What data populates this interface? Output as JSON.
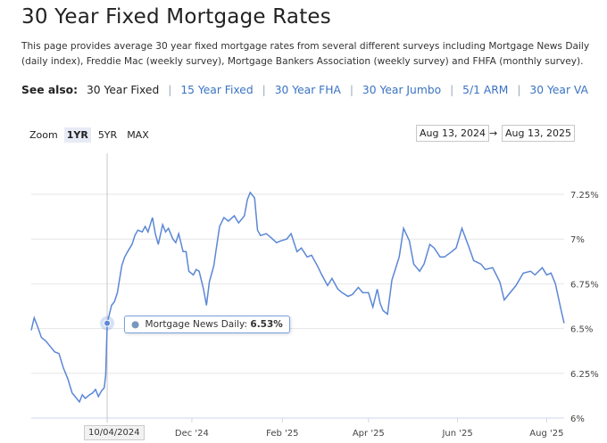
{
  "page": {
    "title": "30 Year Fixed Mortgage Rates",
    "description": "This page provides average 30 year fixed mortgage rates from several different surveys including Mortgage News Daily (daily index), Freddie Mac (weekly survey), Mortgage Bankers Association (weekly survey) and FHFA (monthly survey)."
  },
  "see_also": {
    "label": "See also:",
    "current": "30 Year Fixed",
    "links": [
      "15 Year Fixed",
      "30 Year FHA",
      "30 Year Jumbo",
      "5/1 ARM",
      "30 Year VA"
    ]
  },
  "controls": {
    "zoom_label": "Zoom",
    "zoom_options": [
      "1YR",
      "5YR",
      "MAX"
    ],
    "zoom_selected": "1YR",
    "range_from": "Aug 13, 2024",
    "range_to": "Aug 13, 2025",
    "range_separator": "→"
  },
  "tooltip": {
    "series": "Mortgage News Daily:",
    "value": "6.53%",
    "date": "10/04/2024"
  },
  "colors": {
    "line": "#5b87d6",
    "link": "#3a73c4",
    "grid": "#e6e6e6"
  },
  "chart_data": {
    "type": "line",
    "series": [
      {
        "name": "Mortgage News Daily",
        "x": [
          "2024-08-13",
          "2024-08-15",
          "2024-08-17",
          "2024-08-20",
          "2024-08-23",
          "2024-08-26",
          "2024-08-29",
          "2024-09-01",
          "2024-09-04",
          "2024-09-07",
          "2024-09-10",
          "2024-09-12",
          "2024-09-15",
          "2024-09-17",
          "2024-09-19",
          "2024-09-22",
          "2024-09-24",
          "2024-09-26",
          "2024-09-28",
          "2024-09-30",
          "2024-10-02",
          "2024-10-03",
          "2024-10-04",
          "2024-10-07",
          "2024-10-09",
          "2024-10-11",
          "2024-10-14",
          "2024-10-16",
          "2024-10-18",
          "2024-10-21",
          "2024-10-23",
          "2024-10-25",
          "2024-10-28",
          "2024-10-30",
          "2024-11-01",
          "2024-11-04",
          "2024-11-06",
          "2024-11-08",
          "2024-11-11",
          "2024-11-13",
          "2024-11-15",
          "2024-11-18",
          "2024-11-20",
          "2024-11-22",
          "2024-11-25",
          "2024-11-27",
          "2024-11-29",
          "2024-12-02",
          "2024-12-04",
          "2024-12-06",
          "2024-12-09",
          "2024-12-11",
          "2024-12-13",
          "2024-12-16",
          "2024-12-18",
          "2024-12-20",
          "2024-12-23",
          "2024-12-26",
          "2024-12-30",
          "2025-01-02",
          "2025-01-06",
          "2025-01-08",
          "2025-01-10",
          "2025-01-13",
          "2025-01-15",
          "2025-01-17",
          "2025-01-21",
          "2025-01-24",
          "2025-01-28",
          "2025-01-31",
          "2025-02-04",
          "2025-02-07",
          "2025-02-11",
          "2025-02-14",
          "2025-02-18",
          "2025-02-21",
          "2025-02-25",
          "2025-02-28",
          "2025-03-04",
          "2025-03-07",
          "2025-03-11",
          "2025-03-14",
          "2025-03-18",
          "2025-03-21",
          "2025-03-25",
          "2025-03-28",
          "2025-04-01",
          "2025-04-04",
          "2025-04-07",
          "2025-04-09",
          "2025-04-11",
          "2025-04-14",
          "2025-04-17",
          "2025-04-22",
          "2025-04-25",
          "2025-04-29",
          "2025-05-02",
          "2025-05-06",
          "2025-05-09",
          "2025-05-13",
          "2025-05-16",
          "2025-05-20",
          "2025-05-23",
          "2025-05-28",
          "2025-05-31",
          "2025-06-04",
          "2025-06-09",
          "2025-06-12",
          "2025-06-17",
          "2025-06-20",
          "2025-06-25",
          "2025-06-30",
          "2025-07-03",
          "2025-07-08",
          "2025-07-11",
          "2025-07-16",
          "2025-07-21",
          "2025-07-24",
          "2025-07-29",
          "2025-08-01",
          "2025-08-04",
          "2025-08-07",
          "2025-08-11",
          "2025-08-13"
        ],
        "values": [
          6.49,
          6.56,
          6.52,
          6.45,
          6.43,
          6.4,
          6.37,
          6.36,
          6.28,
          6.22,
          6.14,
          6.12,
          6.09,
          6.13,
          6.11,
          6.13,
          6.14,
          6.16,
          6.12,
          6.15,
          6.17,
          6.24,
          6.53,
          6.63,
          6.65,
          6.7,
          6.85,
          6.9,
          6.93,
          6.97,
          7.02,
          7.05,
          7.04,
          7.07,
          7.04,
          7.12,
          7.03,
          6.97,
          7.08,
          7.04,
          7.06,
          7.0,
          6.98,
          7.03,
          6.93,
          6.93,
          6.82,
          6.8,
          6.83,
          6.82,
          6.72,
          6.63,
          6.76,
          6.85,
          6.96,
          7.07,
          7.12,
          7.1,
          7.13,
          7.09,
          7.13,
          7.22,
          7.26,
          7.23,
          7.05,
          7.02,
          7.03,
          7.01,
          6.98,
          6.99,
          7.0,
          7.03,
          6.93,
          6.95,
          6.9,
          6.91,
          6.85,
          6.8,
          6.74,
          6.78,
          6.72,
          6.7,
          6.68,
          6.69,
          6.73,
          6.7,
          6.7,
          6.62,
          6.72,
          6.64,
          6.6,
          6.58,
          6.77,
          6.9,
          7.06,
          6.99,
          6.86,
          6.82,
          6.86,
          6.97,
          6.95,
          6.9,
          6.9,
          6.93,
          6.95,
          7.06,
          6.95,
          6.88,
          6.86,
          6.83,
          6.84,
          6.76,
          6.66,
          6.71,
          6.74,
          6.81,
          6.82,
          6.8,
          6.84,
          6.8,
          6.81,
          6.75,
          6.6,
          6.53
        ]
      }
    ],
    "y_ticks": [
      "7.25%",
      "7%",
      "6.75%",
      "6.5%",
      "6.25%",
      "6%"
    ],
    "x_ticks": [
      "Dec '24",
      "Feb '25",
      "Apr '25",
      "Jun '25",
      "Aug '25"
    ],
    "ylim": [
      6,
      7.25
    ],
    "xlim": [
      "2024-08-13",
      "2025-08-13"
    ],
    "xlabel": "",
    "ylabel": "",
    "legend": "none",
    "grid": "horizontal"
  }
}
